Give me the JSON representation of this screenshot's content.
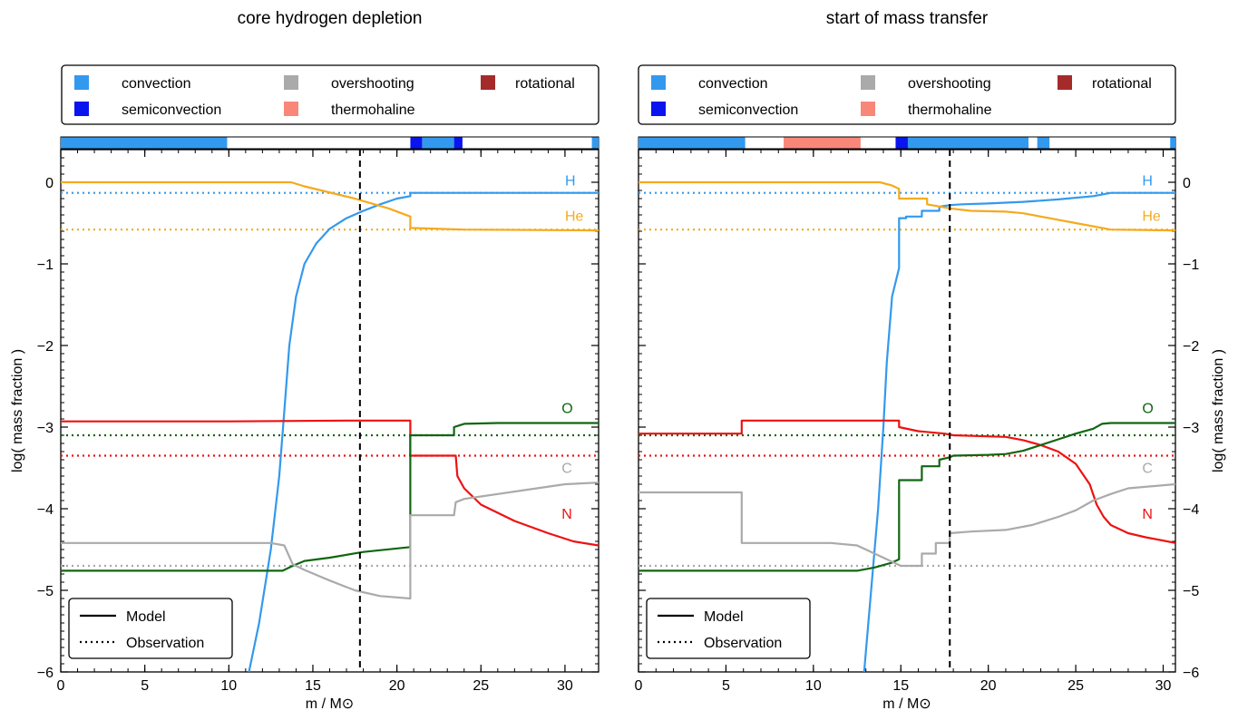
{
  "legend_regions": {
    "items": [
      {
        "label": "convection",
        "color": "#3399ee"
      },
      {
        "label": "semiconvection",
        "color": "#0a14ee"
      },
      {
        "label": "overshooting",
        "color": "#aaaaaa"
      },
      {
        "label": "thermohaline",
        "color": "#f8877a"
      },
      {
        "label": "rotational",
        "color": "#a52a2a"
      }
    ]
  },
  "legend_lines": {
    "model_label": "Model",
    "observation_label": "Observation"
  },
  "colors": {
    "H": "#3399ee",
    "He": "#f5aa1c",
    "O": "#116611",
    "C": "#aaaaaa",
    "N": "#ee1111"
  },
  "chart_data": [
    {
      "type": "line",
      "title": "core hydrogen depletion",
      "xlabel": "m / M⊙",
      "ylabel": "log( mass fraction )",
      "xlim": [
        0,
        32
      ],
      "ylim": [
        -6,
        0.4
      ],
      "xticks": [
        0,
        5,
        10,
        15,
        20,
        25,
        30
      ],
      "yticks": [
        -6,
        -5,
        -4,
        -3,
        -2,
        -1,
        0
      ],
      "ytick_labels": [
        "−6",
        "−5",
        "−4",
        "−3",
        "−2",
        "−1",
        "0"
      ],
      "vline_x": 17.8,
      "regions": [
        {
          "type": "convection",
          "start": 0,
          "end": 9.9
        },
        {
          "type": "semiconvection",
          "start": 20.8,
          "end": 21.5
        },
        {
          "type": "convection",
          "start": 21.5,
          "end": 23.4
        },
        {
          "type": "semiconvection",
          "start": 23.4,
          "end": 23.9
        },
        {
          "type": "convection",
          "start": 31.6,
          "end": 32
        }
      ],
      "observations": [
        {
          "element": "H",
          "y": -0.13
        },
        {
          "element": "He",
          "y": -0.58
        },
        {
          "element": "O",
          "y": -3.1
        },
        {
          "element": "N",
          "y": -3.35
        },
        {
          "element": "C",
          "y": -4.7
        }
      ],
      "series": [
        {
          "name": "H",
          "x": [
            11.2,
            11.8,
            12.5,
            13.0,
            13.3,
            13.6,
            14.0,
            14.5,
            15.2,
            16.0,
            17.0,
            18.0,
            19.0,
            20.0,
            20.8,
            20.8,
            25,
            32
          ],
          "y": [
            -6.0,
            -5.4,
            -4.5,
            -3.6,
            -2.8,
            -2.0,
            -1.4,
            -1.0,
            -0.75,
            -0.57,
            -0.44,
            -0.35,
            -0.27,
            -0.2,
            -0.17,
            -0.13,
            -0.13,
            -0.13
          ]
        },
        {
          "name": "He",
          "x": [
            0,
            13.7,
            14.5,
            15.5,
            16.5,
            17.5,
            18.5,
            19.5,
            20.8,
            20.8,
            24,
            32
          ],
          "y": [
            0,
            0,
            -0.05,
            -0.1,
            -0.15,
            -0.2,
            -0.26,
            -0.32,
            -0.42,
            -0.56,
            -0.58,
            -0.59
          ]
        },
        {
          "name": "N",
          "x": [
            0,
            10,
            17,
            20.8,
            20.8,
            23.5,
            23.6,
            24,
            25,
            27,
            29,
            30.5,
            32
          ],
          "y": [
            -2.93,
            -2.93,
            -2.92,
            -2.92,
            -3.35,
            -3.35,
            -3.6,
            -3.75,
            -3.95,
            -4.15,
            -4.3,
            -4.4,
            -4.45
          ]
        },
        {
          "name": "O",
          "x": [
            0,
            13.2,
            13.8,
            14.5,
            16,
            18,
            20.8,
            20.8,
            23.4,
            23.4,
            24,
            26,
            32
          ],
          "y": [
            -4.76,
            -4.76,
            -4.7,
            -4.64,
            -4.6,
            -4.53,
            -4.47,
            -3.1,
            -3.1,
            -3.0,
            -2.96,
            -2.95,
            -2.95
          ]
        },
        {
          "name": "C",
          "x": [
            0,
            12.5,
            13.3,
            13.8,
            14.5,
            16,
            17.5,
            19,
            20.8,
            20.8,
            23.4,
            23.5,
            24,
            25,
            26,
            28,
            30,
            32
          ],
          "y": [
            -4.42,
            -4.42,
            -4.45,
            -4.68,
            -4.75,
            -4.88,
            -5.0,
            -5.07,
            -5.1,
            -4.08,
            -4.08,
            -3.92,
            -3.88,
            -3.85,
            -3.82,
            -3.76,
            -3.7,
            -3.68
          ]
        }
      ],
      "series_labels": [
        {
          "text": "H",
          "element": "H",
          "x": 30,
          "y": -0.04
        },
        {
          "text": "He",
          "element": "He",
          "x": 30,
          "y": -0.47
        },
        {
          "text": "O",
          "element": "O",
          "x": 29.8,
          "y": -2.83
        },
        {
          "text": "C",
          "element": "C",
          "x": 29.8,
          "y": -3.56
        },
        {
          "text": "N",
          "element": "N",
          "x": 29.8,
          "y": -4.12
        }
      ]
    },
    {
      "type": "line",
      "title": "start of mass transfer",
      "xlabel": "m / M⊙",
      "ylabel": "log( mass fraction )",
      "xlim": [
        0,
        30.7
      ],
      "ylim": [
        -6,
        0.4
      ],
      "xticks": [
        0,
        5,
        10,
        15,
        20,
        25,
        30
      ],
      "yticks": [
        -6,
        -5,
        -4,
        -3,
        -2,
        -1,
        0
      ],
      "ytick_labels": [
        "−6",
        "−5",
        "−4",
        "−3",
        "−2",
        "−1",
        "0"
      ],
      "vline_x": 17.8,
      "regions": [
        {
          "type": "convection",
          "start": 0,
          "end": 6.1
        },
        {
          "type": "thermohaline",
          "start": 8.3,
          "end": 12.7
        },
        {
          "type": "semiconvection",
          "start": 14.7,
          "end": 15.4
        },
        {
          "type": "convection",
          "start": 15.4,
          "end": 22.3
        },
        {
          "type": "convection",
          "start": 22.8,
          "end": 23.5
        },
        {
          "type": "convection",
          "start": 30.4,
          "end": 30.7
        }
      ],
      "observations": [
        {
          "element": "H",
          "y": -0.13
        },
        {
          "element": "He",
          "y": -0.58
        },
        {
          "element": "O",
          "y": -3.1
        },
        {
          "element": "N",
          "y": -3.35
        },
        {
          "element": "C",
          "y": -4.7
        }
      ],
      "series": [
        {
          "name": "H",
          "x": [
            12.9,
            13.3,
            13.7,
            14.0,
            14.2,
            14.5,
            14.9,
            14.9,
            15.3,
            15.3,
            16.2,
            16.2,
            17.2,
            17.2,
            17.8,
            18.5,
            20,
            22,
            24,
            26,
            27,
            30.7
          ],
          "y": [
            -6.0,
            -5.0,
            -4.0,
            -3.0,
            -2.2,
            -1.4,
            -1.05,
            -0.44,
            -0.44,
            -0.42,
            -0.42,
            -0.35,
            -0.35,
            -0.3,
            -0.28,
            -0.27,
            -0.26,
            -0.24,
            -0.21,
            -0.17,
            -0.13,
            -0.13
          ]
        },
        {
          "name": "He",
          "x": [
            0,
            13.8,
            14.5,
            14.9,
            14.9,
            16.5,
            16.5,
            17.8,
            19,
            21,
            22,
            23,
            24,
            25,
            26,
            27,
            30.7
          ],
          "y": [
            0,
            0,
            -0.04,
            -0.08,
            -0.2,
            -0.2,
            -0.27,
            -0.32,
            -0.35,
            -0.36,
            -0.38,
            -0.42,
            -0.46,
            -0.5,
            -0.54,
            -0.58,
            -0.59
          ]
        },
        {
          "name": "N",
          "x": [
            0,
            5.9,
            5.9,
            14.9,
            14.9,
            16,
            17.5,
            18,
            21,
            22,
            23,
            24,
            25,
            25.8,
            26.2,
            26.6,
            27,
            28,
            29,
            30.7
          ],
          "y": [
            -3.08,
            -3.08,
            -2.92,
            -2.92,
            -3.0,
            -3.05,
            -3.08,
            -3.1,
            -3.12,
            -3.16,
            -3.22,
            -3.3,
            -3.45,
            -3.7,
            -3.95,
            -4.1,
            -4.2,
            -4.3,
            -4.35,
            -4.42
          ]
        },
        {
          "name": "O",
          "x": [
            0,
            12.5,
            13.5,
            14.5,
            14.9,
            14.9,
            16.2,
            16.2,
            17.2,
            17.2,
            17.8,
            18,
            20,
            21,
            22,
            23,
            24,
            25,
            26,
            26.5,
            27,
            30.7
          ],
          "y": [
            -4.76,
            -4.76,
            -4.72,
            -4.66,
            -4.62,
            -3.65,
            -3.65,
            -3.48,
            -3.48,
            -3.4,
            -3.37,
            -3.35,
            -3.34,
            -3.33,
            -3.29,
            -3.22,
            -3.15,
            -3.08,
            -3.02,
            -2.96,
            -2.95,
            -2.95
          ]
        },
        {
          "name": "C",
          "x": [
            0,
            5.9,
            5.9,
            11,
            12.5,
            13.5,
            15,
            16.2,
            16.2,
            17.0,
            17.0,
            17.8,
            17.8,
            19,
            21,
            22.5,
            24,
            25,
            26,
            27,
            28,
            30.7
          ],
          "y": [
            -3.8,
            -3.8,
            -4.42,
            -4.42,
            -4.45,
            -4.55,
            -4.7,
            -4.7,
            -4.55,
            -4.55,
            -4.42,
            -4.42,
            -4.3,
            -4.28,
            -4.26,
            -4.2,
            -4.1,
            -4.02,
            -3.9,
            -3.82,
            -3.75,
            -3.7
          ]
        }
      ],
      "series_labels": [
        {
          "text": "H",
          "element": "H",
          "x": 28.8,
          "y": -0.04
        },
        {
          "text": "He",
          "element": "He",
          "x": 28.8,
          "y": -0.47
        },
        {
          "text": "O",
          "element": "O",
          "x": 28.8,
          "y": -2.83
        },
        {
          "text": "C",
          "element": "C",
          "x": 28.8,
          "y": -3.56
        },
        {
          "text": "N",
          "element": "N",
          "x": 28.8,
          "y": -4.12
        }
      ]
    }
  ]
}
